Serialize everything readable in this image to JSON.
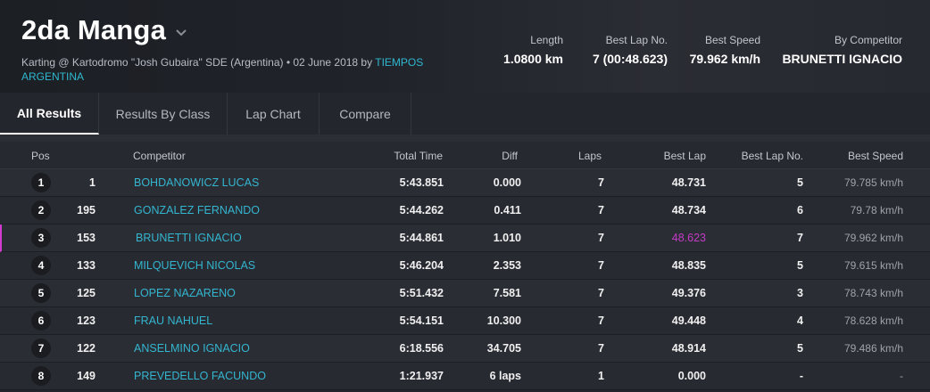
{
  "header": {
    "title": "2da Manga",
    "subtitle_prefix": "Karting @ Kartodromo \"Josh Gubaira\" SDE (Argentina) • 02 June 2018 by ",
    "subtitle_link": "TIEMPOS ARGENTINA"
  },
  "stats": {
    "length": {
      "label": "Length",
      "value": "1.0800 km"
    },
    "best_lap_no": {
      "label": "Best Lap No.",
      "value": "7 (00:48.623)"
    },
    "best_speed": {
      "label": "Best Speed",
      "value": "79.962 km/h"
    },
    "by_competitor": {
      "label": "By Competitor",
      "value": "BRUNETTI IGNACIO"
    }
  },
  "tabs": [
    "All Results",
    "Results By Class",
    "Lap Chart",
    "Compare"
  ],
  "columns": {
    "pos": "Pos",
    "competitor": "Competitor",
    "total_time": "Total Time",
    "diff": "Diff",
    "laps": "Laps",
    "best_lap": "Best Lap",
    "best_lap_no": "Best Lap No.",
    "best_speed": "Best Speed"
  },
  "rows": [
    {
      "pos": "1",
      "num": "1",
      "name": "BOHDANOWICZ LUCAS",
      "total": "5:43.851",
      "diff": "0.000",
      "laps": "7",
      "best_lap": "48.731",
      "best_lap_no": "5",
      "best_speed": "79.785 km/h"
    },
    {
      "pos": "2",
      "num": "195",
      "name": "GONZALEZ FERNANDO",
      "total": "5:44.262",
      "diff": "0.411",
      "laps": "7",
      "best_lap": "48.734",
      "best_lap_no": "6",
      "best_speed": "79.78 km/h"
    },
    {
      "pos": "3",
      "num": "153",
      "name": "BRUNETTI IGNACIO",
      "total": "5:44.861",
      "diff": "1.010",
      "laps": "7",
      "best_lap": "48.623",
      "best_lap_no": "7",
      "best_speed": "79.962 km/h"
    },
    {
      "pos": "4",
      "num": "133",
      "name": "MILQUEVICH NICOLAS",
      "total": "5:46.204",
      "diff": "2.353",
      "laps": "7",
      "best_lap": "48.835",
      "best_lap_no": "5",
      "best_speed": "79.615 km/h"
    },
    {
      "pos": "5",
      "num": "125",
      "name": "LOPEZ NAZARENO",
      "total": "5:51.432",
      "diff": "7.581",
      "laps": "7",
      "best_lap": "49.376",
      "best_lap_no": "3",
      "best_speed": "78.743 km/h"
    },
    {
      "pos": "6",
      "num": "123",
      "name": "FRAU NAHUEL",
      "total": "5:54.151",
      "diff": "10.300",
      "laps": "7",
      "best_lap": "49.448",
      "best_lap_no": "4",
      "best_speed": "78.628 km/h"
    },
    {
      "pos": "7",
      "num": "122",
      "name": "ANSELMINO IGNACIO",
      "total": "6:18.556",
      "diff": "34.705",
      "laps": "7",
      "best_lap": "48.914",
      "best_lap_no": "5",
      "best_speed": "79.486 km/h"
    },
    {
      "pos": "8",
      "num": "149",
      "name": "PREVEDELLO FACUNDO",
      "total": "1:21.937",
      "diff": "6 laps",
      "laps": "1",
      "best_lap": "0.000",
      "best_lap_no": "-",
      "best_speed": "-"
    }
  ],
  "colors": {
    "accent_link": "#34b6d0",
    "best_lap_highlight": "#c33cc6"
  },
  "icons": {
    "title_dropdown": "chevron-down-icon"
  }
}
